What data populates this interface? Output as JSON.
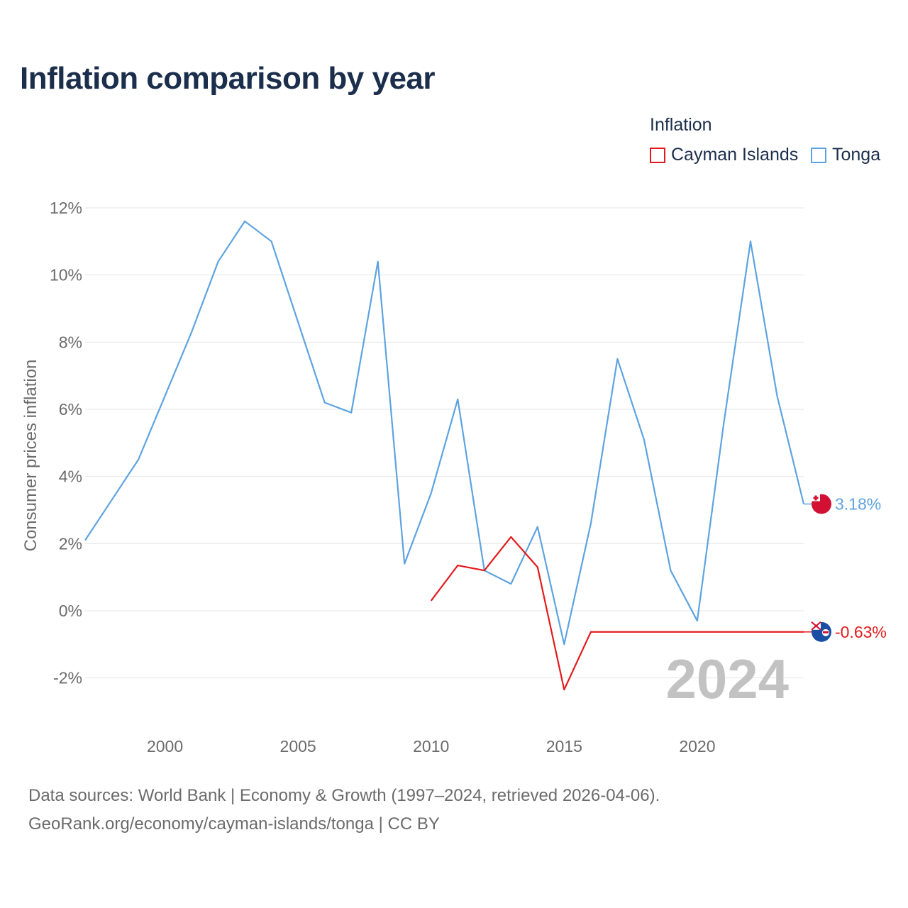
{
  "title": "Inflation comparison by year",
  "legend": {
    "title": "Inflation",
    "items": [
      {
        "name": "Cayman Islands",
        "color": "#e31a1c"
      },
      {
        "name": "Tonga",
        "color": "#5ea3e0"
      }
    ]
  },
  "footer": {
    "line1": "Data sources: World Bank | Economy & Growth (1997–2024, retrieved 2026-04-06).",
    "line2": "GeoRank.org/economy/cayman-islands/tonga | CC BY"
  },
  "chart_data": {
    "type": "line",
    "title": "Inflation comparison by year",
    "xlabel": "",
    "ylabel": "Consumer prices inflation",
    "xlim": [
      1997,
      2024
    ],
    "ylim": [
      -3,
      12.5
    ],
    "x_ticks": [
      2000,
      2005,
      2010,
      2015,
      2020
    ],
    "y_ticks": [
      -2,
      0,
      2,
      4,
      6,
      8,
      10,
      12
    ],
    "y_tick_labels": [
      "-2%",
      "0%",
      "2%",
      "4%",
      "6%",
      "8%",
      "10%",
      "12%"
    ],
    "grid": true,
    "year_watermark": "2024",
    "series": [
      {
        "name": "Tonga",
        "color": "#5ea3e0",
        "end_label": "3.18%",
        "end_icon": "tonga-flag-icon",
        "x": [
          1997,
          1998,
          1999,
          2000,
          2001,
          2002,
          2003,
          2004,
          2005,
          2006,
          2007,
          2008,
          2009,
          2010,
          2011,
          2012,
          2013,
          2014,
          2015,
          2016,
          2017,
          2018,
          2019,
          2020,
          2021,
          2022,
          2023,
          2024
        ],
        "values": [
          2.1,
          3.3,
          4.5,
          6.4,
          8.3,
          10.4,
          11.6,
          11.0,
          8.6,
          6.2,
          5.9,
          10.4,
          1.4,
          3.5,
          6.3,
          1.2,
          0.8,
          2.5,
          -1.0,
          2.6,
          7.5,
          5.1,
          1.2,
          -0.3,
          5.6,
          11.0,
          6.4,
          3.18
        ]
      },
      {
        "name": "Cayman Islands",
        "color": "#e31a1c",
        "end_label": "-0.63%",
        "end_icon": "cayman-islands-flag-icon",
        "x": [
          2010,
          2011,
          2012,
          2013,
          2014,
          2015,
          2016,
          2017,
          2018,
          2019,
          2020,
          2021,
          2022,
          2023,
          2024
        ],
        "values": [
          0.3,
          1.35,
          1.2,
          2.2,
          1.3,
          -2.35,
          -0.63,
          -0.63,
          -0.63,
          -0.63,
          -0.63,
          -0.63,
          -0.63,
          -0.63,
          -0.63
        ]
      }
    ]
  }
}
